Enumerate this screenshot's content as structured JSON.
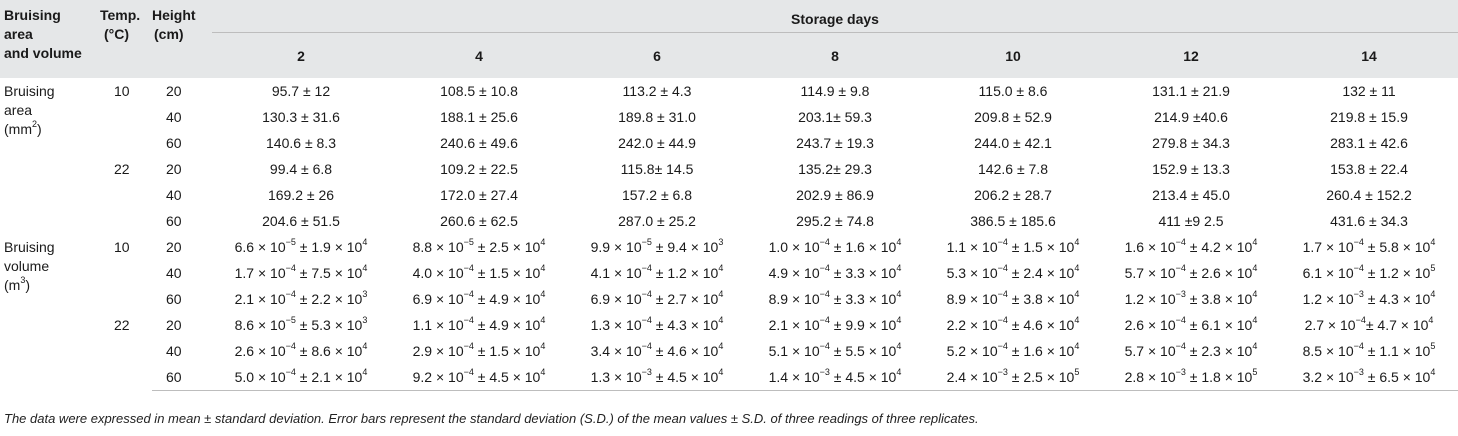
{
  "table": {
    "header": {
      "row_label": [
        "Bruising",
        "area",
        "and volume"
      ],
      "temp_label": [
        "Temp.",
        "(°C)"
      ],
      "height_label": [
        "Height",
        "(cm)"
      ],
      "storage_days_label": "Storage days",
      "days": [
        "2",
        "4",
        "6",
        "8",
        "10",
        "12",
        "14"
      ]
    },
    "groups": [
      {
        "label": [
          "Bruising",
          "area",
          "(mm",
          "2",
          ")"
        ],
        "temps": [
          {
            "temp": "10",
            "rows": [
              {
                "height": "20",
                "values": [
                  "95.7 ± 12",
                  "108.5 ± 10.8",
                  "113.2 ± 4.3",
                  "114.9 ± 9.8",
                  "115.0 ± 8.6",
                  "131.1 ± 21.9",
                  "132 ± 11"
                ]
              },
              {
                "height": "40",
                "values": [
                  "130.3 ± 31.6",
                  "188.1 ± 25.6",
                  "189.8 ± 31.0",
                  "203.1± 59.3",
                  "209.8 ± 52.9",
                  "214.9 ±40.6",
                  "219.8 ± 15.9"
                ]
              },
              {
                "height": "60",
                "values": [
                  "140.6 ± 8.3",
                  "240.6 ± 49.6",
                  "242.0 ± 44.9",
                  "243.7 ± 19.3",
                  "244.0 ± 42.1",
                  "279.8 ± 34.3",
                  "283.1 ± 42.6"
                ]
              }
            ]
          },
          {
            "temp": "22",
            "rows": [
              {
                "height": "20",
                "values": [
                  "99.4 ± 6.8",
                  "109.2 ± 22.5",
                  "115.8± 14.5",
                  "135.2± 29.3",
                  "142.6 ± 7.8",
                  "152.9 ± 13.3",
                  "153.8 ± 22.4"
                ]
              },
              {
                "height": "40",
                "values": [
                  "169.2 ± 26",
                  "172.0 ± 27.4",
                  "157.2 ± 6.8",
                  "202.9 ± 86.9",
                  "206.2 ± 28.7",
                  "213.4 ± 45.0",
                  "260.4 ± 152.2"
                ]
              },
              {
                "height": "60",
                "values": [
                  "204.6 ± 51.5",
                  "260.6 ± 62.5",
                  "287.0 ± 25.2",
                  "295.2 ± 74.8",
                  "386.5 ± 185.6",
                  "411 ±9 2.5",
                  "431.6 ± 34.3"
                ]
              }
            ]
          }
        ]
      },
      {
        "label": [
          "Bruising",
          "volume",
          "(m",
          "3",
          ")"
        ],
        "temps": [
          {
            "temp": "10",
            "rows": [
              {
                "height": "20",
                "values": [
                  [
                    "6.6 × 10",
                    "−5",
                    " ± 1.9 × 10",
                    "4"
                  ],
                  [
                    "8.8 × 10",
                    "−5",
                    " ± 2.5 × 10",
                    "4"
                  ],
                  [
                    "9.9 × 10",
                    "−5",
                    " ± 9.4 × 10",
                    "3"
                  ],
                  [
                    "1.0 × 10",
                    "−4",
                    " ± 1.6 × 10",
                    "4"
                  ],
                  [
                    "1.1 × 10",
                    "−4",
                    " ± 1.5 × 10",
                    "4"
                  ],
                  [
                    "1.6 × 10",
                    "−4",
                    " ± 4.2 × 10",
                    "4"
                  ],
                  [
                    "1.7 × 10",
                    "−4",
                    " ± 5.8 × 10",
                    "4"
                  ]
                ]
              },
              {
                "height": "40",
                "values": [
                  [
                    "1.7 × 10",
                    "−4",
                    " ± 7.5 × 10",
                    "4"
                  ],
                  [
                    "4.0 × 10",
                    "−4",
                    " ± 1.5 × 10",
                    "4"
                  ],
                  [
                    "4.1 × 10",
                    "−4",
                    " ± 1.2 × 10",
                    "4"
                  ],
                  [
                    "4.9 × 10",
                    "−4",
                    " ± 3.3 × 10",
                    "4"
                  ],
                  [
                    "5.3 × 10",
                    "−4",
                    " ± 2.4 × 10",
                    "4"
                  ],
                  [
                    "5.7 × 10",
                    "−4",
                    " ± 2.6 × 10",
                    "4"
                  ],
                  [
                    "6.1 × 10",
                    "−4",
                    " ± 1.2 × 10",
                    "5"
                  ]
                ]
              },
              {
                "height": "60",
                "values": [
                  [
                    "2.1 × 10",
                    "−4",
                    " ± 2.2 × 10",
                    "3"
                  ],
                  [
                    "6.9 × 10",
                    "−4",
                    " ± 4.9 × 10",
                    "4"
                  ],
                  [
                    "6.9 × 10",
                    "−4",
                    " ± 2.7 × 10",
                    "4"
                  ],
                  [
                    "8.9 × 10",
                    "−4",
                    " ± 3.3 × 10",
                    "4"
                  ],
                  [
                    "8.9 × 10",
                    "−4",
                    " ± 3.8 × 10",
                    "4"
                  ],
                  [
                    "1.2 × 10",
                    "−3",
                    " ± 3.8 × 10",
                    "4"
                  ],
                  [
                    "1.2 × 10",
                    "−3",
                    " ± 4.3 × 10",
                    "4"
                  ]
                ]
              }
            ]
          },
          {
            "temp": "22",
            "rows": [
              {
                "height": "20",
                "values": [
                  [
                    "8.6 × 10",
                    "−5",
                    " ± 5.3 × 10",
                    "3"
                  ],
                  [
                    "1.1 × 10",
                    "−4",
                    " ± 4.9 × 10",
                    "4"
                  ],
                  [
                    "1.3 × 10",
                    "−4",
                    " ± 4.3 × 10",
                    "4"
                  ],
                  [
                    "2.1 × 10",
                    "−4",
                    " ± 9.9 × 10",
                    "4"
                  ],
                  [
                    "2.2 × 10",
                    "−4",
                    " ± 4.6 × 10",
                    "4"
                  ],
                  [
                    "2.6 × 10",
                    "−4",
                    " ± 6.1 × 10",
                    "4"
                  ],
                  [
                    "2.7 × 10",
                    "−4",
                    "± 4.7 × 10",
                    "4"
                  ]
                ]
              },
              {
                "height": "40",
                "values": [
                  [
                    "2.6 × 10",
                    "−4",
                    " ± 8.6 × 10",
                    "4"
                  ],
                  [
                    "2.9 × 10",
                    "−4",
                    " ± 1.5 × 10",
                    "4"
                  ],
                  [
                    "3.4 × 10",
                    "−4",
                    " ± 4.6 × 10",
                    "4"
                  ],
                  [
                    "5.1 × 10",
                    "−4",
                    " ± 5.5 × 10",
                    "4"
                  ],
                  [
                    "5.2 × 10",
                    "−4",
                    " ± 1.6 × 10",
                    "4"
                  ],
                  [
                    "5.7 × 10",
                    "−4",
                    " ± 2.3 × 10",
                    "4"
                  ],
                  [
                    "8.5 × 10",
                    "−4",
                    " ± 1.1 × 10",
                    "5"
                  ]
                ]
              },
              {
                "height": "60",
                "values": [
                  [
                    "5.0 × 10",
                    "−4",
                    " ± 2.1 × 10",
                    "4"
                  ],
                  [
                    "9.2 × 10",
                    "−4",
                    " ± 4.5 × 10",
                    "4"
                  ],
                  [
                    "1.3 × 10",
                    "−3",
                    " ± 4.5 × 10",
                    "4"
                  ],
                  [
                    "1.4 × 10",
                    "−3",
                    " ± 4.5 × 10",
                    "4"
                  ],
                  [
                    "2.4 × 10",
                    "−3",
                    " ± 2.5 × 10",
                    "5"
                  ],
                  [
                    "2.8 × 10",
                    "−3",
                    " ± 1.8 × 10",
                    "5"
                  ],
                  [
                    "3.2 × 10",
                    "−3",
                    " ± 6.5 × 10",
                    "4"
                  ]
                ]
              }
            ]
          }
        ]
      }
    ]
  },
  "footnote": "The data were expressed in mean ± standard deviation. Error bars represent the standard deviation (S.D.) of the mean values ± S.D. of three readings of three replicates."
}
